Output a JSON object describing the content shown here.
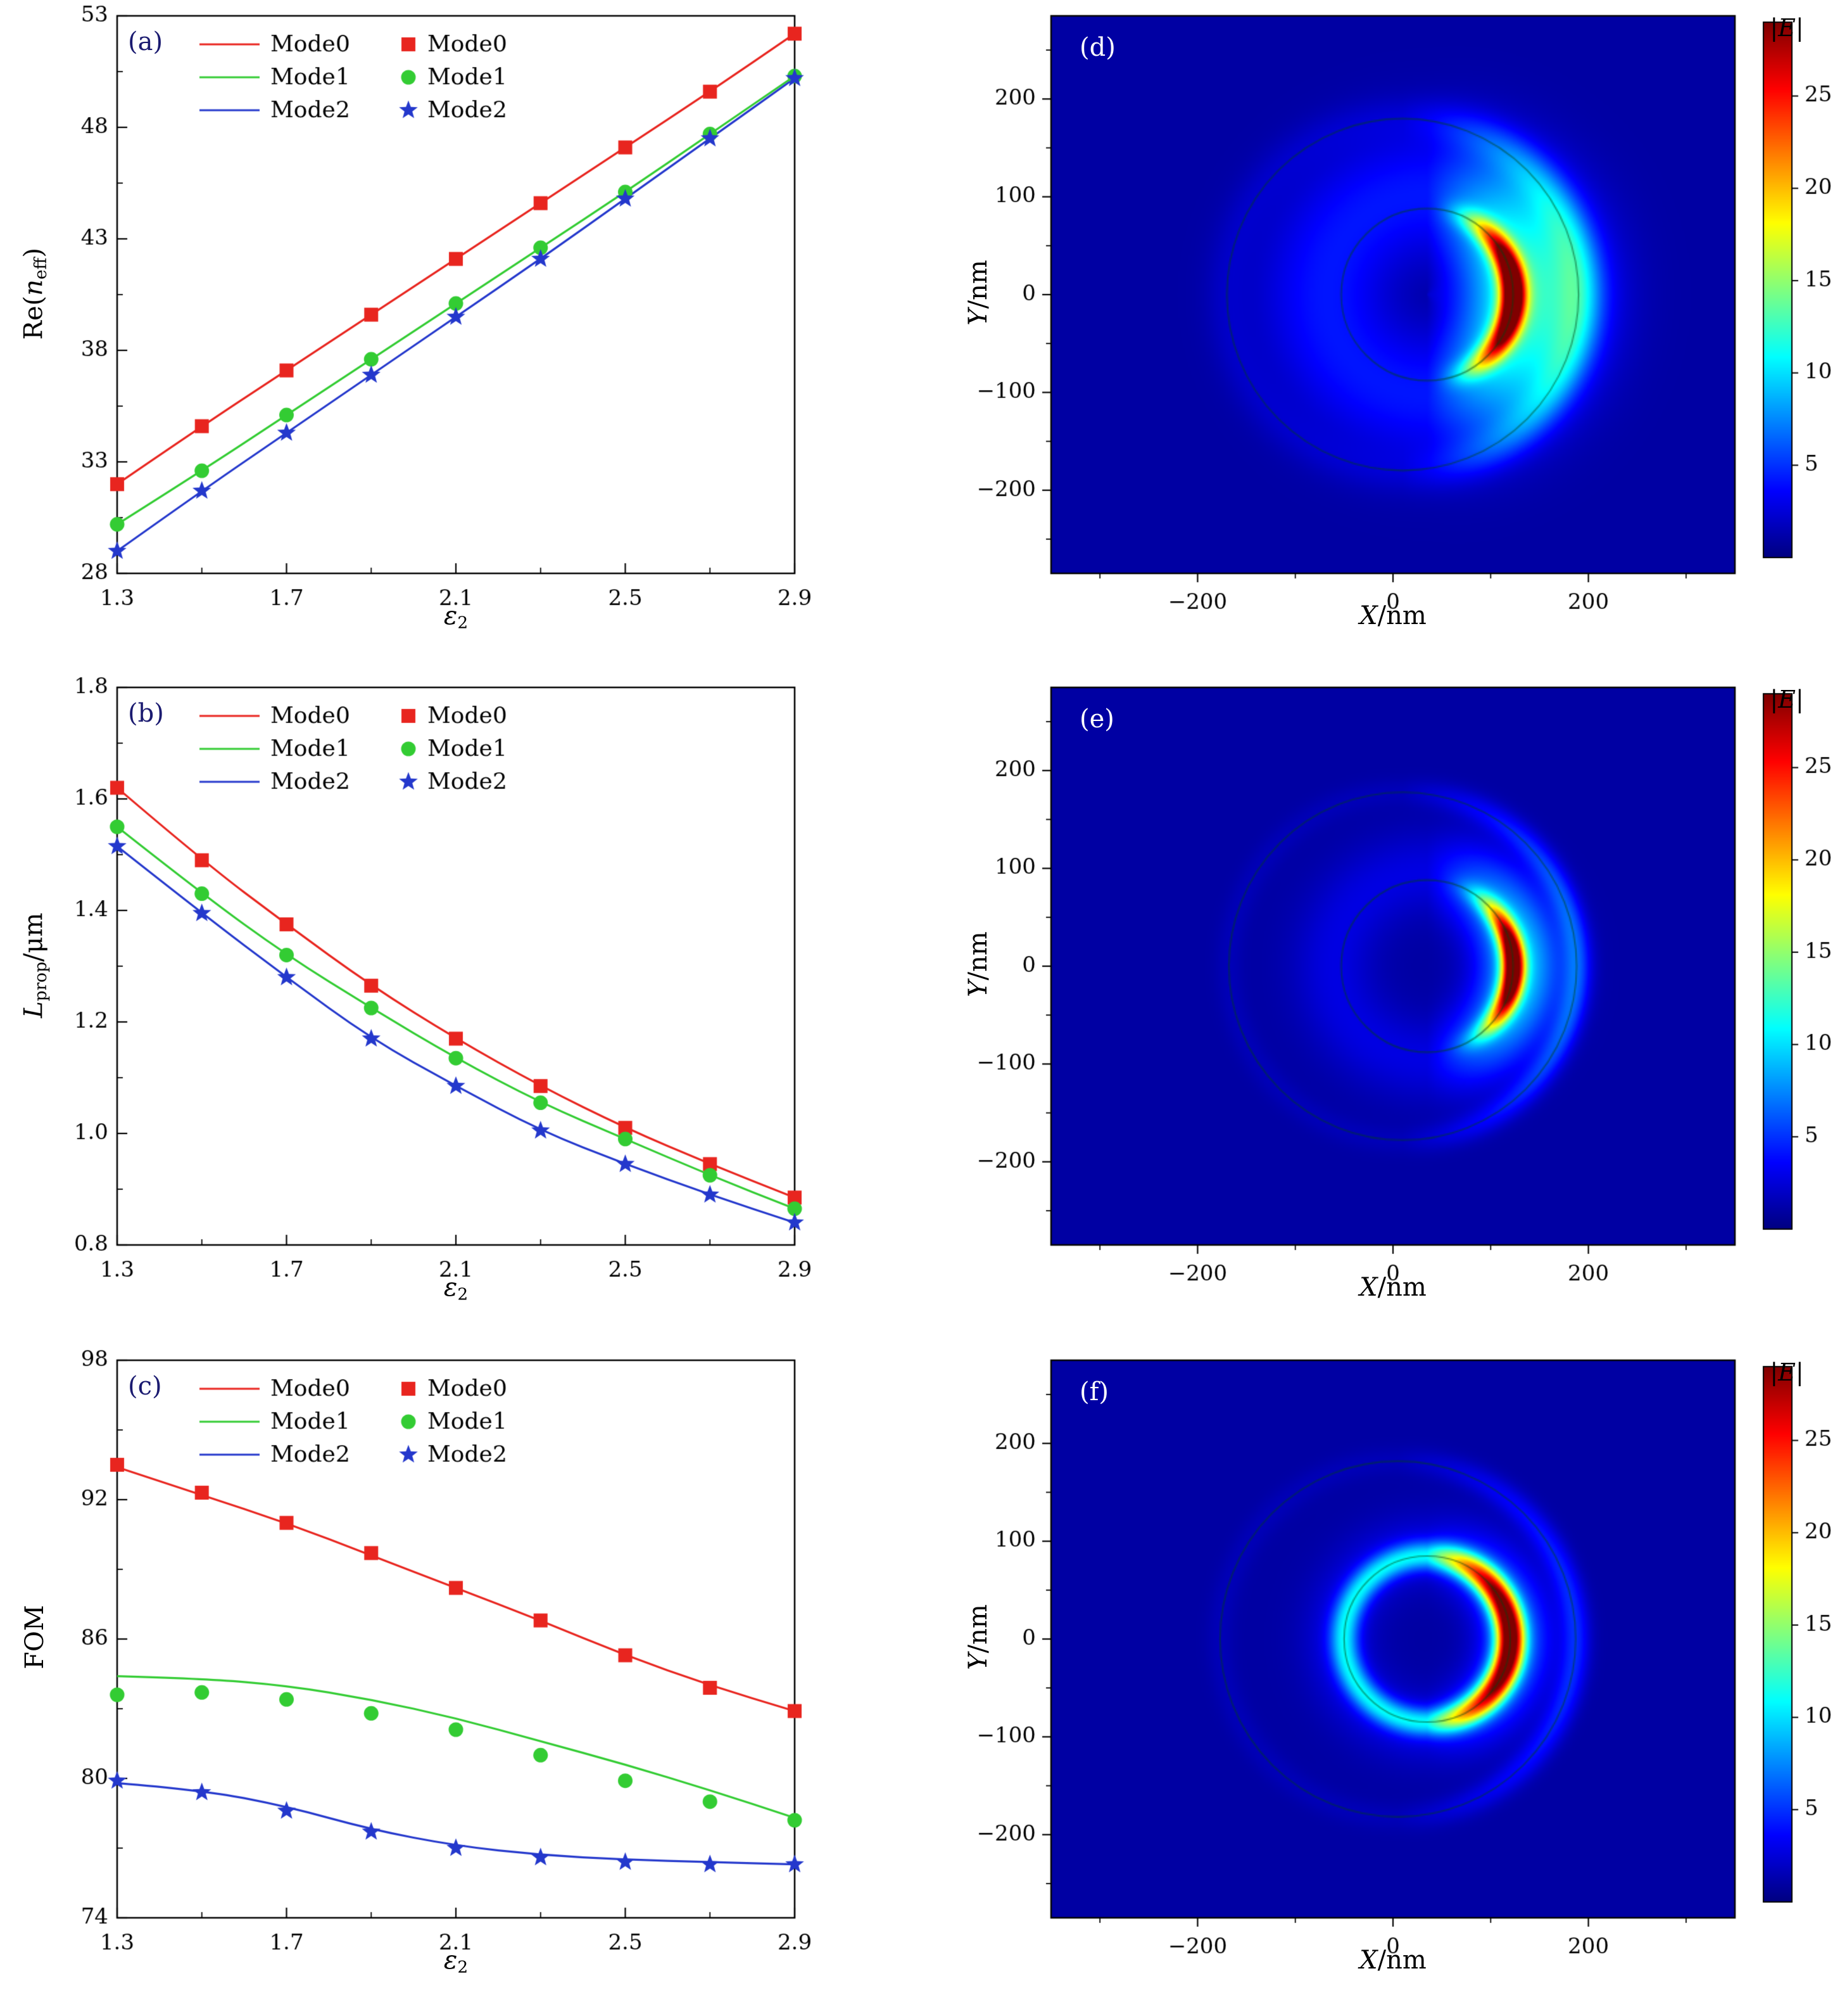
{
  "colorbar": {
    "label_pre": "|",
    "label_var": "E",
    "label_post": "|",
    "ticks": [
      5,
      10,
      15,
      20,
      25
    ],
    "vmax": 29
  },
  "chart_data": [
    {
      "type": "line",
      "panel": "(a)",
      "xlabel": {
        "var": "ε",
        "sub": "2"
      },
      "ylabel": {
        "pre": "Re(",
        "var": "n",
        "sub": "eff",
        "post": ")"
      },
      "xlim": [
        1.3,
        2.9
      ],
      "ylim": [
        28,
        53
      ],
      "xticks": [
        1.3,
        1.7,
        2.1,
        2.5,
        2.9
      ],
      "xtick_labels": [
        "1.3",
        "1.7",
        "2.1",
        "2.5",
        "2.9"
      ],
      "xminor": [
        1.5,
        1.9,
        2.3,
        2.7
      ],
      "yticks": [
        28,
        33,
        38,
        43,
        48,
        53
      ],
      "ytick_labels": [
        "28",
        "33",
        "38",
        "43",
        "48",
        "53"
      ],
      "yminor": [
        30.5,
        35.5,
        40.5,
        45.5,
        50.5
      ],
      "x": [
        1.3,
        1.5,
        1.7,
        1.9,
        2.1,
        2.3,
        2.5,
        2.7,
        2.9
      ],
      "series": [
        {
          "name": "Mode0",
          "color": "#e8251f",
          "marker": "square",
          "values": [
            32.0,
            34.6,
            37.1,
            39.6,
            42.1,
            44.6,
            47.1,
            49.6,
            52.2
          ]
        },
        {
          "name": "Mode1",
          "color": "#33cc33",
          "marker": "circle",
          "values": [
            30.2,
            32.6,
            35.1,
            37.6,
            40.1,
            42.6,
            45.1,
            47.7,
            50.3
          ]
        },
        {
          "name": "Mode2",
          "color": "#2438cc",
          "marker": "star",
          "values": [
            29.0,
            31.7,
            34.3,
            36.9,
            39.5,
            42.1,
            44.8,
            47.5,
            50.2
          ]
        }
      ]
    },
    {
      "type": "line",
      "panel": "(b)",
      "xlabel": {
        "var": "ε",
        "sub": "2"
      },
      "ylabel": {
        "pre": "",
        "var": "L",
        "sub": "prop",
        "post": "/μm"
      },
      "xlim": [
        1.3,
        2.9
      ],
      "ylim": [
        0.8,
        1.8
      ],
      "xticks": [
        1.3,
        1.7,
        2.1,
        2.5,
        2.9
      ],
      "xtick_labels": [
        "1.3",
        "1.7",
        "2.1",
        "2.5",
        "2.9"
      ],
      "xminor": [
        1.5,
        1.9,
        2.3,
        2.7
      ],
      "yticks": [
        0.8,
        1.0,
        1.2,
        1.4,
        1.6,
        1.8
      ],
      "ytick_labels": [
        "0.8",
        "1.0",
        "1.2",
        "1.4",
        "1.6",
        "1.8"
      ],
      "yminor": [
        0.9,
        1.1,
        1.3,
        1.5,
        1.7
      ],
      "x": [
        1.3,
        1.5,
        1.7,
        1.9,
        2.1,
        2.3,
        2.5,
        2.7,
        2.9
      ],
      "series": [
        {
          "name": "Mode0",
          "color": "#e8251f",
          "marker": "square",
          "values": [
            1.62,
            1.49,
            1.375,
            1.265,
            1.17,
            1.085,
            1.01,
            0.945,
            0.885
          ]
        },
        {
          "name": "Mode1",
          "color": "#33cc33",
          "marker": "circle",
          "values": [
            1.55,
            1.43,
            1.32,
            1.225,
            1.135,
            1.055,
            0.99,
            0.925,
            0.865
          ]
        },
        {
          "name": "Mode2",
          "color": "#2438cc",
          "marker": "star",
          "values": [
            1.515,
            1.395,
            1.28,
            1.17,
            1.085,
            1.005,
            0.945,
            0.89,
            0.84
          ]
        }
      ]
    },
    {
      "type": "line",
      "panel": "(c)",
      "xlabel": {
        "var": "ε",
        "sub": "2"
      },
      "ylabel": {
        "pre": "FOM"
      },
      "xlim": [
        1.3,
        2.9
      ],
      "ylim": [
        74,
        98
      ],
      "xticks": [
        1.3,
        1.7,
        2.1,
        2.5,
        2.9
      ],
      "xtick_labels": [
        "1.3",
        "1.7",
        "2.1",
        "2.5",
        "2.9"
      ],
      "xminor": [
        1.5,
        1.9,
        2.3,
        2.7
      ],
      "yticks": [
        74,
        80,
        86,
        92,
        98
      ],
      "ytick_labels": [
        "74",
        "80",
        "86",
        "92",
        "98"
      ],
      "yminor": [
        77,
        83,
        89,
        95
      ],
      "x": [
        1.3,
        1.5,
        1.7,
        1.9,
        2.1,
        2.3,
        2.5,
        2.7,
        2.9
      ],
      "series": [
        {
          "name": "Mode0",
          "color": "#e8251f",
          "marker": "square",
          "values": [
            93.4,
            92.2,
            91.0,
            89.6,
            88.2,
            86.8,
            85.3,
            84.0,
            82.9
          ],
          "marker_values": [
            93.5,
            92.3,
            91.0,
            89.7,
            88.2,
            86.8,
            85.3,
            83.9,
            82.9
          ]
        },
        {
          "name": "Mode1",
          "color": "#33cc33",
          "marker": "circle",
          "values": [
            84.4,
            84.3,
            84.0,
            83.4,
            82.6,
            81.6,
            80.6,
            79.5,
            78.3
          ],
          "marker_values": [
            83.6,
            83.7,
            83.4,
            82.8,
            82.1,
            81.0,
            79.9,
            79.0,
            78.2
          ]
        },
        {
          "name": "Mode2",
          "color": "#2438cc",
          "marker": "star",
          "values": [
            79.8,
            79.5,
            78.8,
            77.8,
            77.1,
            76.7,
            76.5,
            76.4,
            76.3
          ],
          "marker_values": [
            79.9,
            79.4,
            78.6,
            77.7,
            77.0,
            76.6,
            76.4,
            76.3,
            76.3
          ]
        }
      ]
    },
    {
      "type": "heatmap",
      "panel": "(d)",
      "xlabel": {
        "var": "X",
        "post": "/nm"
      },
      "ylabel": {
        "var": "Y",
        "post": "/nm"
      },
      "xlim": [
        -350,
        350
      ],
      "ylim": [
        -285,
        285
      ],
      "xticks": [
        -200,
        0,
        200
      ],
      "xtick_labels": [
        "−200",
        "0",
        "200"
      ],
      "xminor": [
        -300,
        -100,
        100,
        300
      ],
      "yticks": [
        -200,
        -100,
        0,
        100,
        200
      ],
      "ytick_labels": [
        "−200",
        "−100",
        "0",
        "100",
        "200"
      ],
      "yminor": [
        -250,
        -150,
        -50,
        50,
        150,
        250
      ],
      "field": {
        "base": 1.0,
        "vmax": 29,
        "components": [
          {
            "cx": 35,
            "cy": 0,
            "r": 88,
            "sigma": 9,
            "ampBase": 0,
            "ampCos": 27,
            "power": 2
          },
          {
            "cx": 35,
            "cy": 0,
            "r": 102,
            "sigma": 48,
            "ampBase": 3.2,
            "ampCos": 8.5,
            "power": 1
          },
          {
            "cx": 10,
            "cy": 0,
            "r": 180,
            "sigma": 16,
            "ampBase": 0.8,
            "ampCos": 5,
            "power": 1
          }
        ],
        "outlines": [
          {
            "cx": 35,
            "cy": 0,
            "r": 88
          },
          {
            "cx": 10,
            "cy": 0,
            "r": 180
          }
        ]
      }
    },
    {
      "type": "heatmap",
      "panel": "(e)",
      "xlabel": {
        "var": "X",
        "post": "/nm"
      },
      "ylabel": {
        "var": "Y",
        "post": "/nm"
      },
      "xlim": [
        -350,
        350
      ],
      "ylim": [
        -285,
        285
      ],
      "xticks": [
        -200,
        0,
        200
      ],
      "xtick_labels": [
        "−200",
        "0",
        "200"
      ],
      "xminor": [
        -300,
        -100,
        100,
        300
      ],
      "yticks": [
        -200,
        -100,
        0,
        100,
        200
      ],
      "ytick_labels": [
        "−200",
        "−100",
        "0",
        "100",
        "200"
      ],
      "yminor": [
        -250,
        -150,
        -50,
        50,
        150,
        250
      ],
      "field": {
        "base": 1.0,
        "vmax": 29,
        "components": [
          {
            "cx": 35,
            "cy": 0,
            "r": 88,
            "sigma": 8,
            "ampBase": 0,
            "ampCos": 27,
            "power": 3
          },
          {
            "cx": 35,
            "cy": 0,
            "r": 95,
            "sigma": 30,
            "ampBase": 1.8,
            "ampCos": 7,
            "power": 1
          },
          {
            "cx": 10,
            "cy": 0,
            "r": 178,
            "sigma": 10,
            "ampBase": 0.6,
            "ampCos": 4,
            "power": 1
          }
        ],
        "outlines": [
          {
            "cx": 35,
            "cy": 0,
            "r": 88
          },
          {
            "cx": 10,
            "cy": 0,
            "r": 178
          }
        ]
      }
    },
    {
      "type": "heatmap",
      "panel": "(f)",
      "xlabel": {
        "var": "X",
        "post": "/nm"
      },
      "ylabel": {
        "var": "Y",
        "post": "/nm"
      },
      "xlim": [
        -350,
        350
      ],
      "ylim": [
        -285,
        285
      ],
      "xticks": [
        -200,
        0,
        200
      ],
      "xtick_labels": [
        "−200",
        "0",
        "200"
      ],
      "xminor": [
        -300,
        -100,
        100,
        300
      ],
      "yticks": [
        -200,
        -100,
        0,
        100,
        200
      ],
      "ytick_labels": [
        "−200",
        "−100",
        "0",
        "100",
        "200"
      ],
      "yminor": [
        -250,
        -150,
        -50,
        50,
        150,
        250
      ],
      "field": {
        "base": 1.0,
        "vmax": 29,
        "components": [
          {
            "cx": 35,
            "cy": 0,
            "r": 85,
            "sigma": 10,
            "ampBase": 8,
            "ampCos": 19,
            "power": 1
          },
          {
            "cx": 35,
            "cy": 0,
            "r": 90,
            "sigma": 26,
            "ampBase": 2,
            "ampCos": 4,
            "power": 1
          },
          {
            "cx": 5,
            "cy": 0,
            "r": 182,
            "sigma": 10,
            "ampBase": 0.6,
            "ampCos": 3,
            "power": 1
          }
        ],
        "outlines": [
          {
            "cx": 35,
            "cy": 0,
            "r": 85
          },
          {
            "cx": 5,
            "cy": 0,
            "r": 182
          }
        ]
      }
    }
  ]
}
